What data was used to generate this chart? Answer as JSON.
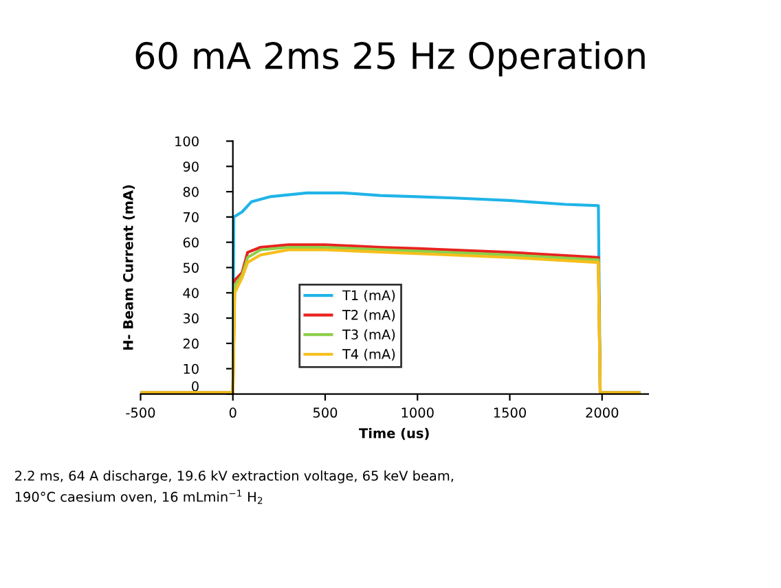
{
  "chart_data": {
    "type": "line",
    "title": "60 mA 2ms 25 Hz Operation",
    "xlabel": "Time (us)",
    "ylabel": "H- Beam Current (mA)",
    "xlim": [
      -500,
      2250
    ],
    "xticks": [
      -500,
      0,
      500,
      1000,
      1500,
      2000
    ],
    "ylim": [
      0,
      100
    ],
    "yticks": [
      0,
      10,
      20,
      30,
      40,
      50,
      60,
      70,
      80,
      90,
      100
    ],
    "grid": false,
    "legend": "bottom left",
    "marker": "none",
    "line_style": "solid",
    "series": [
      {
        "name": "T1 (mA)",
        "color": "#1fb4e8",
        "x": [
          0,
          5,
          50,
          100,
          200,
          400,
          600,
          800,
          1000,
          1200,
          1500,
          1800,
          1980,
          1990,
          2200
        ],
        "values": [
          0.5,
          70,
          72,
          76,
          78,
          79.5,
          79.5,
          78.5,
          78,
          77.5,
          76.5,
          75,
          74.5,
          0.5,
          0.5
        ]
      },
      {
        "name": "T2 (mA)",
        "color": "#e8231f",
        "x": [
          -500,
          0,
          10,
          50,
          80,
          150,
          300,
          500,
          800,
          1000,
          1500,
          1980,
          1990,
          2200
        ],
        "values": [
          0.5,
          0.5,
          45,
          48,
          56,
          58,
          59,
          59,
          58,
          57.5,
          56,
          54,
          0.5,
          0.5
        ]
      },
      {
        "name": "T3 (mA)",
        "color": "#8ccf4a",
        "x": [
          -500,
          0,
          10,
          50,
          80,
          150,
          300,
          500,
          1000,
          1500,
          1980,
          1990,
          2200
        ],
        "values": [
          0.5,
          0.5,
          43,
          47,
          54,
          57,
          58,
          58,
          56.5,
          55,
          53,
          0.5,
          0.5
        ]
      },
      {
        "name": "T4 (mA)",
        "color": "#f7be1b",
        "x": [
          -500,
          0,
          10,
          50,
          80,
          150,
          300,
          500,
          1000,
          1500,
          1980,
          1990,
          2200
        ],
        "values": [
          0.5,
          0.5,
          40,
          46,
          52,
          55,
          57,
          57,
          55.5,
          54,
          52,
          0.5,
          0.5
        ]
      }
    ],
    "annotations": [
      "2.2 ms, 64 A discharge, 19.6 kV extraction voltage, 65 keV beam, 190°C caesium oven, 16 mLmin$^{−1}$ H$_{2}$"
    ]
  }
}
